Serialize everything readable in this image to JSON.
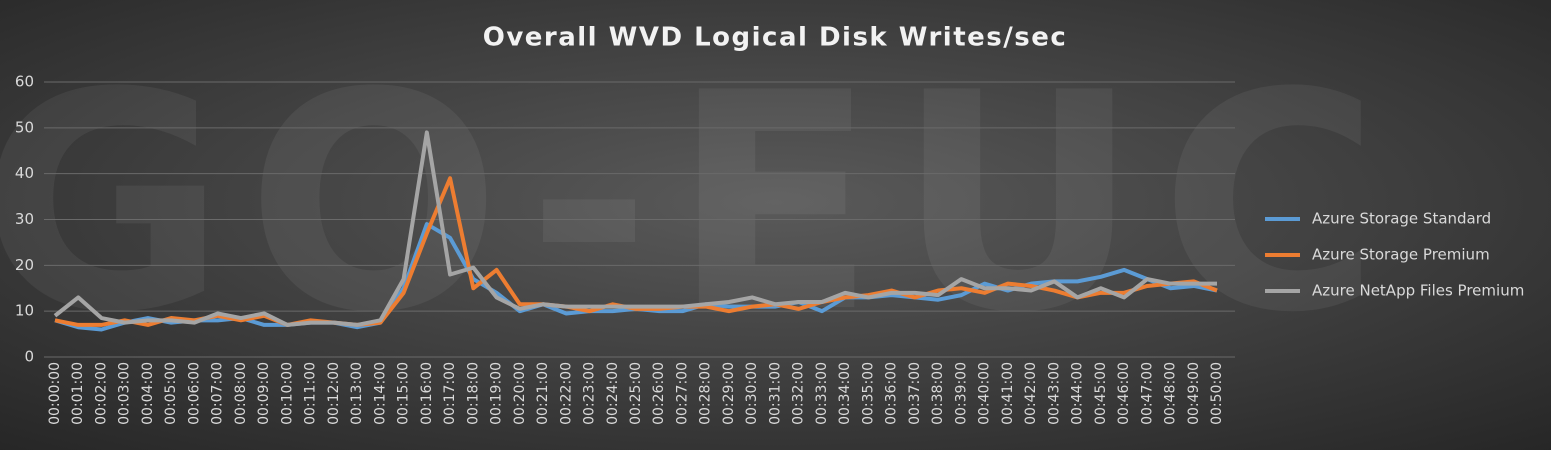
{
  "chart_data": {
    "type": "line",
    "title": "Overall WVD Logical Disk Writes/sec",
    "watermark": "GO-EUC",
    "categories": [
      "00:00:00",
      "00:01:00",
      "00:02:00",
      "00:03:00",
      "00:04:00",
      "00:05:00",
      "00:06:00",
      "00:07:00",
      "00:08:00",
      "00:09:00",
      "00:10:00",
      "00:11:00",
      "00:12:00",
      "00:13:00",
      "00:14:00",
      "00:15:00",
      "00:16:00",
      "00:17:00",
      "00:18:00",
      "00:19:00",
      "00:20:00",
      "00:21:00",
      "00:22:00",
      "00:23:00",
      "00:24:00",
      "00:25:00",
      "00:26:00",
      "00:27:00",
      "00:28:00",
      "00:29:00",
      "00:30:00",
      "00:31:00",
      "00:32:00",
      "00:33:00",
      "00:34:00",
      "00:35:00",
      "00:36:00",
      "00:37:00",
      "00:38:00",
      "00:39:00",
      "00:40:00",
      "00:41:00",
      "00:42:00",
      "00:43:00",
      "00:44:00",
      "00:45:00",
      "00:46:00",
      "00:47:00",
      "00:48:00",
      "00:49:00",
      "00:50:00"
    ],
    "series": [
      {
        "name": "Azure Storage Standard",
        "color": "#5b9bd5",
        "values": [
          8,
          6.5,
          6,
          7.5,
          8.5,
          7.5,
          8,
          8,
          8.5,
          7,
          7,
          7.5,
          7.5,
          6.5,
          7.5,
          15,
          29,
          26,
          17,
          14,
          10,
          11.5,
          9.5,
          10,
          10,
          10.5,
          10,
          10,
          11.5,
          11,
          11,
          11,
          12,
          10,
          13,
          13,
          13.5,
          13,
          12.5,
          13.5,
          16,
          14.5,
          16,
          16.5,
          16.5,
          17.5,
          19,
          17,
          15,
          15.5,
          14.5
        ]
      },
      {
        "name": "Azure Storage Premium",
        "color": "#ed7d31",
        "values": [
          8,
          7,
          7,
          8,
          7,
          8.5,
          8,
          9,
          8,
          9,
          7,
          8,
          7.5,
          7,
          7.5,
          14,
          27,
          39,
          15,
          19,
          11.5,
          11.5,
          11,
          10,
          11.5,
          10.5,
          10.5,
          11,
          11,
          10,
          11,
          11.5,
          10.5,
          12,
          13,
          13.5,
          14.5,
          13,
          14.5,
          15,
          14,
          16,
          15.5,
          14.5,
          13,
          14,
          14,
          15.5,
          16,
          16.5,
          14.5
        ]
      },
      {
        "name": "Azure NetApp Files Premium",
        "color": "#a5a5a5",
        "values": [
          9,
          13,
          8.5,
          7.5,
          8,
          8,
          7.5,
          9.5,
          8.5,
          9.5,
          7,
          7.5,
          7.5,
          7,
          8,
          17,
          49,
          18,
          19.5,
          13,
          10.5,
          11.5,
          11,
          11,
          11,
          11,
          11,
          11,
          11.5,
          12,
          13,
          11.5,
          12,
          12,
          14,
          13,
          14,
          14,
          13.5,
          17,
          15,
          15,
          14.5,
          16.5,
          13,
          15,
          13,
          17,
          16,
          16,
          16
        ]
      }
    ],
    "ylim": [
      0,
      60
    ],
    "yticks": [
      0,
      10,
      20,
      30,
      40,
      50,
      60
    ],
    "grid": true,
    "legend": "right"
  }
}
